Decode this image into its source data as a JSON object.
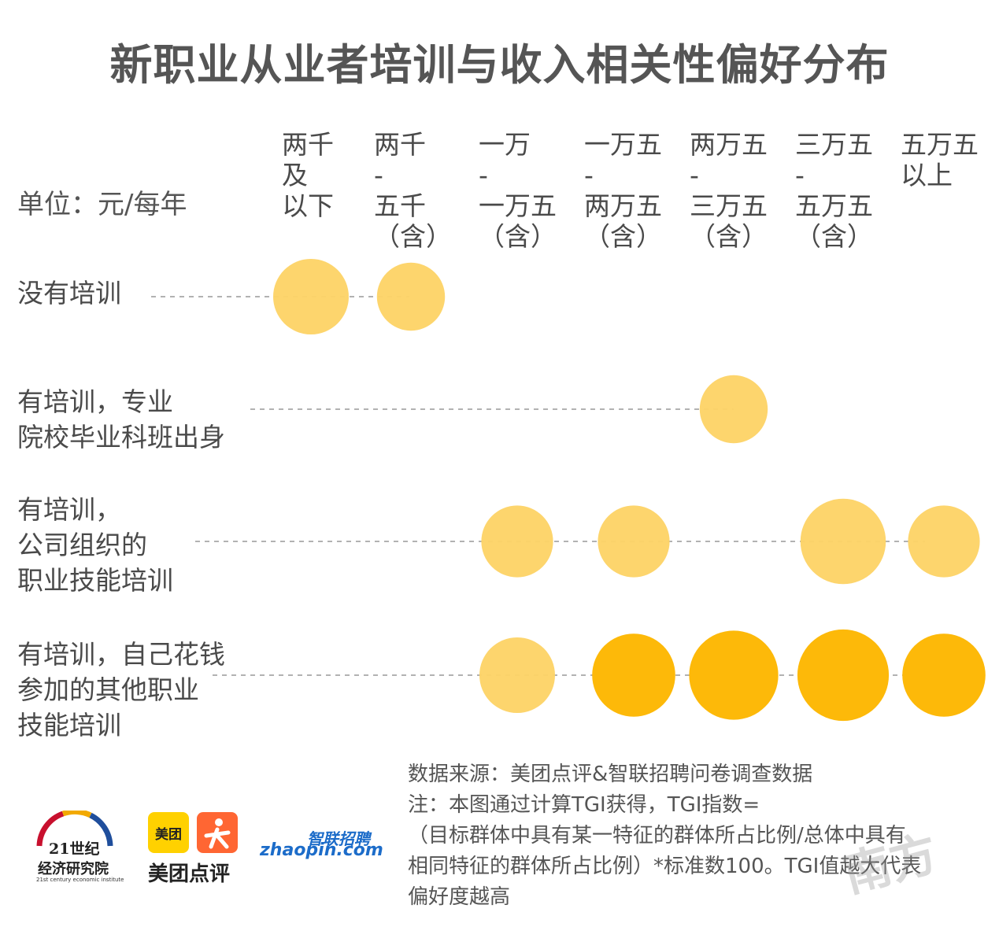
{
  "title": "新职业从业者培训与收入相关性偏好分布",
  "unit": "单位：元/每年",
  "chart_data": {
    "type": "bubble",
    "title": "新职业从业者培训与收入相关性偏好分布",
    "unit": "单位：元/每年",
    "columns": [
      "两千\n及\n以下",
      "两千\n-\n五千\n（含）",
      "一万\n-\n一万五\n（含）",
      "一万五\n-\n两万五\n（含）",
      "两万五\n-\n三万五\n（含）",
      "三万五\n-\n五万五\n（含）",
      "五万五\n以上"
    ],
    "rows": [
      "没有培训",
      "有培训，专业\n院校毕业科班出身",
      "有培训，\n公司组织的\n职业技能培训",
      "有培训，自己花钱\n参加的其他职业\n技能培训"
    ],
    "bubbles": [
      {
        "row": 0,
        "col": 0,
        "size": 1.0,
        "strong": false
      },
      {
        "row": 0,
        "col": 1,
        "size": 0.9,
        "strong": false
      },
      {
        "row": 1,
        "col": 4,
        "size": 0.9,
        "strong": false
      },
      {
        "row": 2,
        "col": 2,
        "size": 0.95,
        "strong": false
      },
      {
        "row": 2,
        "col": 3,
        "size": 0.95,
        "strong": false
      },
      {
        "row": 2,
        "col": 5,
        "size": 1.13,
        "strong": false
      },
      {
        "row": 2,
        "col": 6,
        "size": 0.95,
        "strong": false
      },
      {
        "row": 3,
        "col": 2,
        "size": 1.0,
        "strong": false
      },
      {
        "row": 3,
        "col": 3,
        "size": 1.1,
        "strong": true
      },
      {
        "row": 3,
        "col": 4,
        "size": 1.18,
        "strong": true
      },
      {
        "row": 3,
        "col": 5,
        "size": 1.21,
        "strong": true
      },
      {
        "row": 3,
        "col": 6,
        "size": 1.1,
        "strong": true
      }
    ],
    "colors": {
      "light": "#fdd365",
      "strong": "#fdb909",
      "guide": "#999999"
    }
  },
  "footer": {
    "source": "数据来源：美团点评&智联招聘问卷调查数据\n注：本图通过计算TGI获得，TGI指数=\n（目标群体中具有某一特征的群体所占比例/总体中具有\n相同特征的群体所占比例）*标准数100。TGI值越大代表\n偏好度越高"
  },
  "logos": {
    "institute_cn_line1": "21世纪",
    "institute_cn_line2": "经济研究院",
    "institute_en": "21st century economic institute",
    "meituan_box": "美团",
    "meituan_name": "美团点评",
    "zhaopin_cn": "智联招聘",
    "zhaopin_en": "zhaopin.com",
    "watermark": "南方"
  }
}
